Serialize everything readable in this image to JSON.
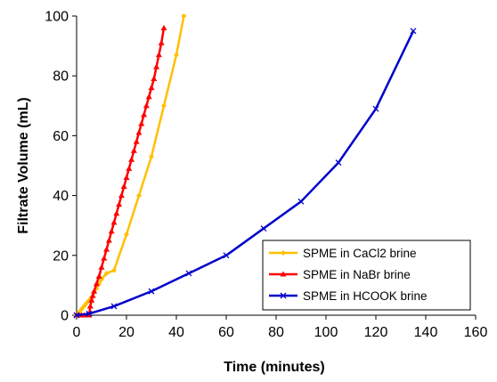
{
  "chart_data": {
    "type": "line",
    "title": "",
    "xlabel": "Time (minutes)",
    "ylabel": "Filtrate Volume (mL)",
    "xlim": [
      0,
      160
    ],
    "ylim": [
      0,
      100
    ],
    "xticks": [
      0,
      20,
      40,
      60,
      80,
      100,
      120,
      140,
      160
    ],
    "yticks": [
      0,
      20,
      40,
      60,
      80,
      100
    ],
    "grid": false,
    "legend_position": "bottom-right",
    "series": [
      {
        "name": "SPME in CaCl2 brine",
        "color": "#FFC000",
        "marker": "diamond",
        "points": [
          [
            0,
            0
          ],
          [
            1,
            1
          ],
          [
            2,
            2
          ],
          [
            3,
            3
          ],
          [
            4,
            4
          ],
          [
            5,
            5
          ],
          [
            6,
            6
          ],
          [
            7,
            7.5
          ],
          [
            8,
            9
          ],
          [
            9,
            10.5
          ],
          [
            10,
            12
          ],
          [
            12,
            14
          ],
          [
            15,
            15
          ],
          [
            20,
            27
          ],
          [
            25,
            40
          ],
          [
            30,
            53
          ],
          [
            35,
            70
          ],
          [
            40,
            87
          ],
          [
            43,
            100
          ]
        ]
      },
      {
        "name": "SPME in NaBr brine",
        "color": "#FF0000",
        "marker": "triangle",
        "points": [
          [
            0,
            0
          ],
          [
            1,
            0
          ],
          [
            2,
            0
          ],
          [
            3,
            0
          ],
          [
            4,
            0
          ],
          [
            5,
            0
          ],
          [
            5.5,
            3
          ],
          [
            6,
            5
          ],
          [
            6.5,
            6.5
          ],
          [
            7,
            8
          ],
          [
            8,
            10.5
          ],
          [
            9,
            13
          ],
          [
            10,
            16
          ],
          [
            11,
            19
          ],
          [
            12,
            22
          ],
          [
            13,
            25
          ],
          [
            14,
            28
          ],
          [
            15,
            31
          ],
          [
            16,
            34
          ],
          [
            17,
            37
          ],
          [
            18,
            40
          ],
          [
            19,
            43
          ],
          [
            20,
            46
          ],
          [
            21,
            49
          ],
          [
            22,
            52
          ],
          [
            23,
            55
          ],
          [
            24,
            58
          ],
          [
            25,
            61
          ],
          [
            26,
            64
          ],
          [
            27,
            67
          ],
          [
            28,
            70
          ],
          [
            29,
            73
          ],
          [
            30,
            76
          ],
          [
            31,
            79
          ],
          [
            32,
            83
          ],
          [
            33,
            87
          ],
          [
            34,
            91
          ],
          [
            35,
            96
          ]
        ]
      },
      {
        "name": "SPME in HCOOK brine",
        "color": "#0000CC",
        "marker": "x",
        "points": [
          [
            0,
            0
          ],
          [
            5,
            0.5
          ],
          [
            15,
            3
          ],
          [
            30,
            8
          ],
          [
            45,
            14
          ],
          [
            60,
            20
          ],
          [
            75,
            29
          ],
          [
            90,
            38
          ],
          [
            105,
            51
          ],
          [
            120,
            69
          ],
          [
            135,
            95
          ]
        ]
      }
    ]
  }
}
